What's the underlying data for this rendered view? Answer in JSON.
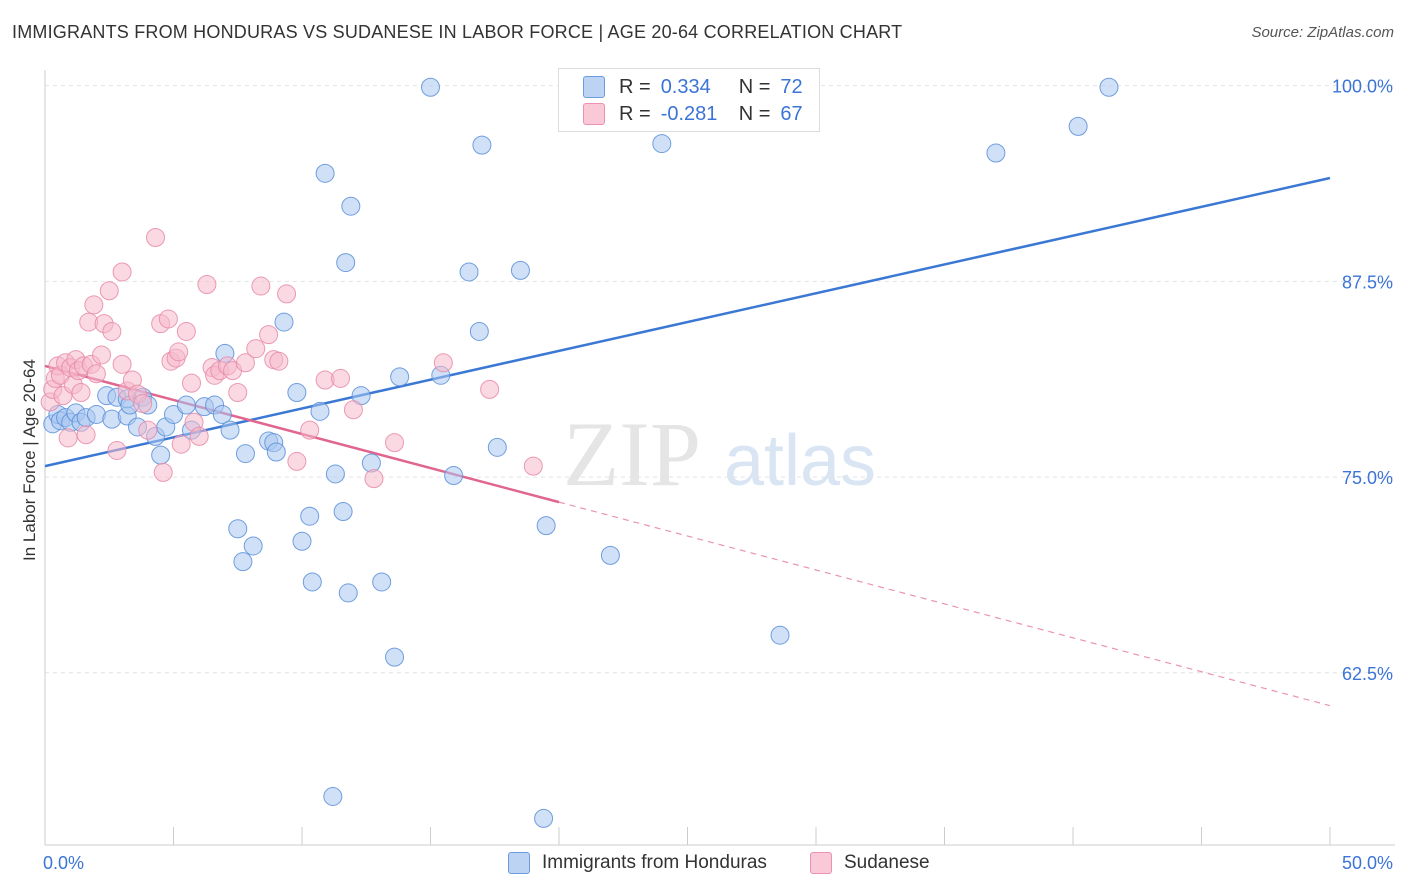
{
  "header": {
    "title": "IMMIGRANTS FROM HONDURAS VS SUDANESE IN LABOR FORCE | AGE 20-64 CORRELATION CHART",
    "source": "Source: ZipAtlas.com"
  },
  "legend": {
    "rows": [
      {
        "r_label": "R =",
        "r_value": "0.334",
        "n_label": "N =",
        "n_value": "72"
      },
      {
        "r_label": "R =",
        "r_value": "-0.281",
        "n_label": "N =",
        "n_value": "67"
      }
    ]
  },
  "bottom_legend": [
    "Immigrants from Honduras",
    "Sudanese"
  ],
  "watermark": {
    "zip": "ZIP",
    "atlas": "atlas"
  },
  "colors": {
    "blue_fill": "#a9c6f0",
    "blue_stroke": "#5b8fd9",
    "blue_line": "#3a78d4",
    "pink_fill": "#f6b9cc",
    "pink_stroke": "#e889a8",
    "pink_line": "#e0668f",
    "tick_label": "#3b74d6",
    "grid": "#e4e4e4"
  },
  "chart_data": {
    "type": "scatter",
    "title": "IMMIGRANTS FROM HONDURAS VS SUDANESE IN LABOR FORCE | AGE 20-64 CORRELATION CHART",
    "xlabel": "",
    "ylabel": "In Labor Force | Age 20-64",
    "xlim": [
      0,
      50
    ],
    "ylim": [
      51.5,
      101
    ],
    "x_tick_labels": [
      "0.0%",
      "50.0%"
    ],
    "y_ticks": [
      100,
      87.5,
      75,
      62.5
    ],
    "y_tick_labels": [
      "100.0%",
      "87.5%",
      "75.0%",
      "62.5%"
    ],
    "grid": true,
    "legend_position": "top-center",
    "series": [
      {
        "name": "Immigrants from Honduras",
        "r": 0.334,
        "n": 72,
        "trend": {
          "x": [
            0,
            50
          ],
          "y": [
            75.7,
            94.1
          ]
        },
        "points": [
          [
            0.3,
            78.4
          ],
          [
            0.5,
            79.0
          ],
          [
            0.6,
            78.6
          ],
          [
            0.8,
            78.8
          ],
          [
            1.0,
            78.5
          ],
          [
            1.2,
            79.1
          ],
          [
            1.4,
            78.5
          ],
          [
            1.6,
            78.8
          ],
          [
            2.0,
            79.0
          ],
          [
            2.4,
            80.2
          ],
          [
            2.6,
            78.7
          ],
          [
            2.8,
            80.1
          ],
          [
            3.2,
            78.9
          ],
          [
            3.2,
            80.0
          ],
          [
            3.3,
            79.6
          ],
          [
            3.6,
            78.2
          ],
          [
            3.8,
            80.1
          ],
          [
            4.0,
            79.6
          ],
          [
            4.3,
            77.6
          ],
          [
            4.5,
            76.4
          ],
          [
            4.7,
            78.2
          ],
          [
            5.0,
            79.0
          ],
          [
            5.5,
            79.6
          ],
          [
            5.7,
            78.0
          ],
          [
            6.2,
            79.5
          ],
          [
            6.6,
            79.6
          ],
          [
            6.9,
            79.0
          ],
          [
            7.0,
            82.9
          ],
          [
            7.2,
            78.0
          ],
          [
            7.5,
            71.7
          ],
          [
            7.7,
            69.6
          ],
          [
            7.8,
            76.5
          ],
          [
            8.1,
            70.6
          ],
          [
            8.7,
            77.3
          ],
          [
            8.9,
            77.2
          ],
          [
            9.0,
            76.6
          ],
          [
            9.3,
            84.9
          ],
          [
            9.8,
            80.4
          ],
          [
            10.0,
            70.9
          ],
          [
            10.3,
            72.5
          ],
          [
            10.4,
            68.3
          ],
          [
            10.7,
            79.2
          ],
          [
            10.9,
            94.4
          ],
          [
            11.2,
            54.6
          ],
          [
            11.3,
            75.2
          ],
          [
            11.6,
            72.8
          ],
          [
            11.7,
            88.7
          ],
          [
            11.8,
            67.6
          ],
          [
            11.9,
            92.3
          ],
          [
            12.3,
            80.2
          ],
          [
            12.7,
            75.9
          ],
          [
            13.1,
            68.3
          ],
          [
            13.6,
            63.5
          ],
          [
            13.8,
            81.4
          ],
          [
            15.0,
            99.9
          ],
          [
            15.4,
            81.5
          ],
          [
            15.9,
            75.1
          ],
          [
            16.5,
            88.1
          ],
          [
            16.9,
            84.3
          ],
          [
            17.0,
            96.2
          ],
          [
            17.6,
            76.9
          ],
          [
            18.5,
            88.2
          ],
          [
            19.4,
            53.2
          ],
          [
            19.5,
            71.9
          ],
          [
            22.0,
            70.0
          ],
          [
            24.0,
            96.3
          ],
          [
            25.5,
            99.7
          ],
          [
            27.5,
            99.5
          ],
          [
            28.6,
            64.9
          ],
          [
            37.0,
            95.7
          ],
          [
            40.2,
            97.4
          ],
          [
            41.4,
            99.9
          ]
        ]
      },
      {
        "name": "Sudanese",
        "r": -0.281,
        "n": 67,
        "trend": {
          "x": [
            0,
            20
          ],
          "y": [
            82.1,
            73.4
          ]
        },
        "trend_dashed": {
          "x": [
            20,
            50
          ],
          "y": [
            73.4,
            60.4
          ]
        },
        "points": [
          [
            0.2,
            79.8
          ],
          [
            0.3,
            80.6
          ],
          [
            0.4,
            81.3
          ],
          [
            0.5,
            82.1
          ],
          [
            0.6,
            81.5
          ],
          [
            0.7,
            80.2
          ],
          [
            0.8,
            82.3
          ],
          [
            0.9,
            77.5
          ],
          [
            1.0,
            82.0
          ],
          [
            1.1,
            80.9
          ],
          [
            1.2,
            82.5
          ],
          [
            1.3,
            81.8
          ],
          [
            1.4,
            80.4
          ],
          [
            1.5,
            82.1
          ],
          [
            1.6,
            77.7
          ],
          [
            1.7,
            84.9
          ],
          [
            1.8,
            82.2
          ],
          [
            1.9,
            86.0
          ],
          [
            2.0,
            81.6
          ],
          [
            2.2,
            82.8
          ],
          [
            2.3,
            84.8
          ],
          [
            2.5,
            86.9
          ],
          [
            2.6,
            84.3
          ],
          [
            2.8,
            76.7
          ],
          [
            3.0,
            88.1
          ],
          [
            3.0,
            82.2
          ],
          [
            3.2,
            80.5
          ],
          [
            3.4,
            81.2
          ],
          [
            3.6,
            80.3
          ],
          [
            3.8,
            79.7
          ],
          [
            4.0,
            78.0
          ],
          [
            4.3,
            90.3
          ],
          [
            4.5,
            84.8
          ],
          [
            4.6,
            75.3
          ],
          [
            4.8,
            85.1
          ],
          [
            4.9,
            82.4
          ],
          [
            5.1,
            82.6
          ],
          [
            5.2,
            83.0
          ],
          [
            5.3,
            77.1
          ],
          [
            5.5,
            84.3
          ],
          [
            5.7,
            81.0
          ],
          [
            5.8,
            78.5
          ],
          [
            6.0,
            77.6
          ],
          [
            6.3,
            87.3
          ],
          [
            6.5,
            82.0
          ],
          [
            6.6,
            81.5
          ],
          [
            6.8,
            81.8
          ],
          [
            7.1,
            82.1
          ],
          [
            7.3,
            81.8
          ],
          [
            7.5,
            80.4
          ],
          [
            7.8,
            82.3
          ],
          [
            8.2,
            83.2
          ],
          [
            8.4,
            87.2
          ],
          [
            8.7,
            84.1
          ],
          [
            8.9,
            82.5
          ],
          [
            9.1,
            82.4
          ],
          [
            9.4,
            86.7
          ],
          [
            9.8,
            76.0
          ],
          [
            10.3,
            78.0
          ],
          [
            10.9,
            81.2
          ],
          [
            11.5,
            81.3
          ],
          [
            12.0,
            79.3
          ],
          [
            12.8,
            74.9
          ],
          [
            13.6,
            77.2
          ],
          [
            15.5,
            82.3
          ],
          [
            19.0,
            75.7
          ],
          [
            17.3,
            80.6
          ]
        ]
      }
    ]
  }
}
